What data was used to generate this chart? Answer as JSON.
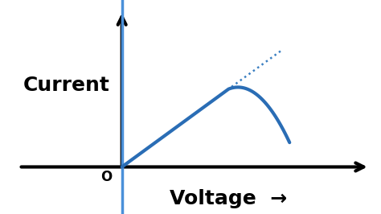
{
  "background_color": "#ffffff",
  "axis_color": "#000000",
  "blue_line_color": "#4a90d9",
  "curve_color": "#2a6db5",
  "dotted_color": "#3a7fc1",
  "origin_label": "O",
  "xlabel": "Voltage",
  "ylabel": "Current",
  "axis_linewidth": 3.0,
  "curve_linewidth": 3.0,
  "font_size_label": 18,
  "font_size_origin": 12
}
